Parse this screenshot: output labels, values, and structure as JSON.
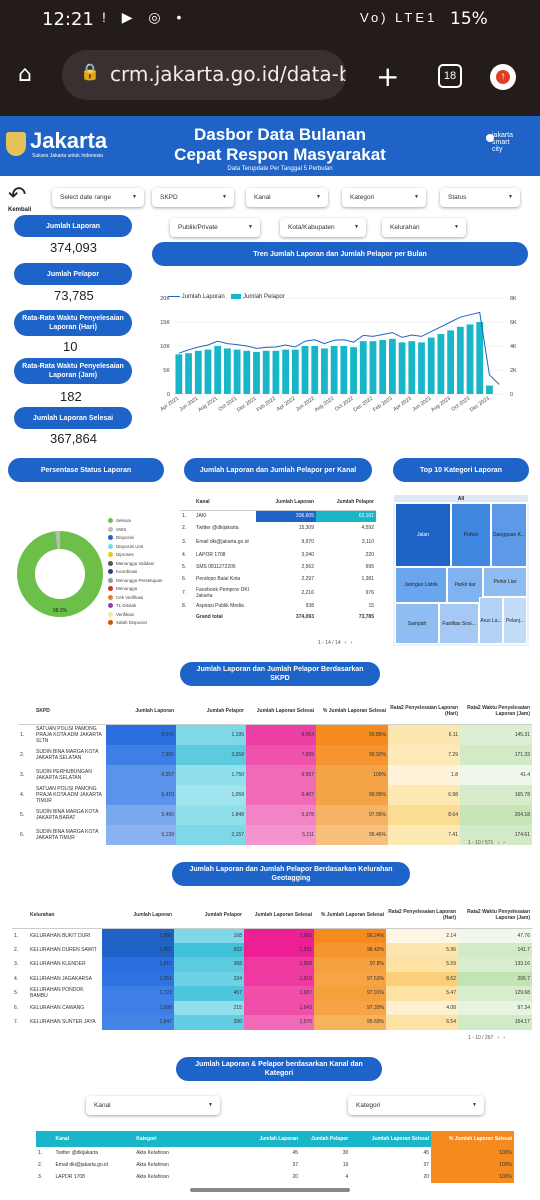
{
  "status_bar": {
    "time": "12:21",
    "icons_left": "! ▶ ◎ •",
    "icons_right": "Vo) LTE1",
    "battery": "15%"
  },
  "browser": {
    "url": "crm.jakarta.go.id/data-b",
    "tab_count": "18"
  },
  "header": {
    "logo": "Jakarta",
    "tagline": "Sukses Jakarta untuk Indonesia",
    "title_line1": "Dasbor Data Bulanan",
    "title_line2": "Cepat Respon Masyarakat",
    "subtitle": "Data Terupdate Per Tanggal 5 Perbulan",
    "jsc": [
      "jakarta",
      "smart",
      "city"
    ]
  },
  "back": {
    "label": "Kembali"
  },
  "filters": {
    "date_range": "Select date range",
    "skpd": "SKPD",
    "kanal": "Kanal",
    "kategori": "Kategori",
    "status": "Status",
    "publik": "Publik/Private",
    "kota": "Kota/Kabupaten",
    "kelurahan": "Kelurahan"
  },
  "kpis": [
    {
      "label": "Jumlah Laporan",
      "value": "374,093"
    },
    {
      "label": "Jumlah Pelapor",
      "value": "73,785"
    },
    {
      "label": "Rata-Rata Waktu Penyelesaian Laporan (Hari)",
      "value": "10"
    },
    {
      "label": "Rata-Rata Waktu Penyelesaian Laporan (Jam)",
      "value": "182"
    },
    {
      "label": "Jumlah Laporan Selesai",
      "value": "367,864"
    }
  ],
  "trend": {
    "title": "Tren Jumlah Laporan dan Jumlah Pelapor per Bulan",
    "legend_line": "Jumlah Laporan",
    "legend_bar": "Jumlah Pelapor"
  },
  "chart_data": {
    "type": "bar",
    "x": [
      "Apr 2021",
      "May 2021",
      "Jun 2021",
      "Jul 2021",
      "Aug 2021",
      "Sep 2021",
      "Oct 2021",
      "Nov 2021",
      "Dec 2021",
      "Jan 2022",
      "Feb 2022",
      "Mar 2022",
      "Apr 2022",
      "May 2022",
      "Jun 2022",
      "Jul 2022",
      "Aug 2022",
      "Sep 2022",
      "Oct 2022",
      "Nov 2022",
      "Dec 2022",
      "Jan 2023",
      "Feb 2023",
      "Mar 2023",
      "Apr 2023",
      "May 2023",
      "Jun 2023",
      "Jul 2023",
      "Aug 2023",
      "Sep 2023",
      "Oct 2023",
      "Nov 2023",
      "Dec 2023",
      "Jan 2024"
    ],
    "tick_labels": [
      "Apr 2021",
      "Jun 2021",
      "Aug 2021",
      "Oct 2021",
      "Dec 2021",
      "Feb 2022",
      "Apr 2022",
      "Jun 2022",
      "Aug 2022",
      "Oct 2022",
      "Dec 2022",
      "Feb 2023",
      "Apr 2023",
      "Jun 2023",
      "Aug 2023",
      "Oct 2023",
      "Dec 2023"
    ],
    "series": [
      {
        "name": "Jumlah Laporan",
        "type": "line",
        "axis": "left",
        "values": [
          8500,
          9200,
          9800,
          10200,
          11000,
          10500,
          10300,
          10000,
          9500,
          9700,
          9800,
          10200,
          9800,
          11000,
          11300,
          10500,
          11200,
          11300,
          10800,
          12200,
          12000,
          12400,
          12800,
          11800,
          12300,
          12000,
          13000,
          14000,
          15000,
          16000,
          16500,
          17000,
          4000,
          2000
        ]
      },
      {
        "name": "Jumlah Pelapor",
        "type": "bar",
        "axis": "right",
        "values": [
          3300,
          3400,
          3600,
          3700,
          4000,
          3800,
          3700,
          3600,
          3500,
          3600,
          3600,
          3700,
          3700,
          4000,
          4000,
          3800,
          4000,
          4000,
          3900,
          4400,
          4400,
          4500,
          4600,
          4300,
          4400,
          4300,
          4700,
          5000,
          5300,
          5600,
          5800,
          6000,
          700,
          0
        ]
      }
    ],
    "ylim_left": [
      0,
      20000
    ],
    "yticks_left": [
      "0",
      "5K",
      "10K",
      "15K",
      "20K"
    ],
    "ylim_right": [
      0,
      8000
    ],
    "yticks_right": [
      "0",
      "2K",
      "4K",
      "6K",
      "8K"
    ],
    "line_color": "#1f63c6",
    "bar_color": "#19b6c9"
  },
  "status_section": {
    "title": "Persentase Status Laporan",
    "legend": [
      {
        "label": "Selesai",
        "color": "#6cc04a"
      },
      {
        "label": "SWS",
        "color": "#bbbbbb"
      },
      {
        "label": "Disposisi",
        "color": "#1f63c6"
      },
      {
        "label": "Disposisi Unit",
        "color": "#7cd3f7"
      },
      {
        "label": "Diproses",
        "color": "#f0c419"
      },
      {
        "label": "Menunggu Validasi",
        "color": "#555555"
      },
      {
        "label": "Koordinasi",
        "color": "#2a3a8f"
      },
      {
        "label": "Menunggu Persetujuan",
        "color": "#9a9a9a"
      },
      {
        "label": "Menunggu",
        "color": "#c0392b"
      },
      {
        "label": "Cek Verifikasi",
        "color": "#e67e22"
      },
      {
        "label": "TL Ditolak",
        "color": "#8e44ad"
      },
      {
        "label": "Verifikasi",
        "color": "#f9e79f"
      },
      {
        "label": "Salah Disposisi",
        "color": "#d35400"
      }
    ],
    "pie_label": "98.3%",
    "selesai_pct": 98.3
  },
  "kanal_section": {
    "title": "Jumlah Laporan dan Jumlah Pelapor per Kanal",
    "headers": [
      "",
      "Kanal",
      "Jumlah Laporan",
      "Jumlah Pelapor"
    ],
    "rows": [
      [
        "1.",
        "JAKI",
        "336,605",
        "62,161"
      ],
      [
        "2.",
        "Twitter @dkijakarta",
        "15,309",
        "4,592"
      ],
      [
        "3.",
        "Email dki@jakarta.go.id",
        "9,970",
        "3,110"
      ],
      [
        "4.",
        "LAPOR 1708",
        "3,040",
        "220"
      ],
      [
        "5.",
        "SMS 0811272206",
        "2,562",
        "695"
      ],
      [
        "6.",
        "Pendopo Balai Kota",
        "2,297",
        "1,381"
      ],
      [
        "7.",
        "Facebook Pemprov DKI Jakarta",
        "2,216",
        "976"
      ],
      [
        "8.",
        "Aspirasi Publik Media",
        "938",
        "15"
      ]
    ],
    "total": [
      "Grand total",
      "374,093",
      "73,785"
    ],
    "pager": "1 - 14 / 14"
  },
  "top10": {
    "title": "Top 10 Kategori Laporan",
    "header": "All",
    "cells": [
      "Jalan",
      "Pohon",
      "Gangguan K...",
      "Jaringan Listrik",
      "Parkir liar",
      "Perkir Liar",
      "Sampah",
      "Fasilitas Sosi...",
      "Arus La...",
      "Pelanj..."
    ]
  },
  "skpd_section": {
    "title": "Jumlah Laporan dan Jumlah Pelapor Berdasarkan SKPD",
    "headers": [
      "",
      "SKPD",
      "Jumlah Laporan",
      "Jumlah Pelapor",
      "Jumlah Laporan Selesai",
      "% Jumlah Laporan Selesai",
      "Rata2 Penyelesaian Laporan (Hari)",
      "Rata2 Waktu Penyelesaian Laporan (Jam)"
    ],
    "rows": [
      [
        "1.",
        "SATUAN POLISI PAMONG PRAJA KOTA ADM JAKARTA SLTN",
        "8,076",
        "1,195",
        "8,064",
        "99.85%",
        "6.11",
        "145.31"
      ],
      [
        "2.",
        "SUDIN BINA MARGA KOTA JAKARTA SELATAN",
        "7,905",
        "3,658",
        "7,899",
        "99.92%",
        "7.29",
        "171.33"
      ],
      [
        "3.",
        "SUDIN PERHUBUNGAN JAKARTA SELATAN",
        "6,557",
        "1,750",
        "6,557",
        "100%",
        "1.8",
        "41.4"
      ],
      [
        "4.",
        "SATUAN POLISI PAMONG PRAJA KOTA ADM JAKARTA TIMUR",
        "6,410",
        "1,059",
        "6,407",
        "99.95%",
        "6.98",
        "165.78"
      ],
      [
        "5.",
        "SUDIN BINA MARGA KOTA JAKARTA BARAT",
        "5,490",
        "1,848",
        "5,378",
        "97.96%",
        "8.64",
        "204.18"
      ],
      [
        "6.",
        "SUDIN BINA MARGA KOTA JAKARTA TIMUR",
        "5,139",
        "2,157",
        "5,111",
        "99.46%",
        "7.41",
        "174.61"
      ]
    ],
    "pager": "1 - 10 / 571"
  },
  "kelurahan_section": {
    "title": "Jumlah Laporan dan Jumlah Pelapor Berdasarkan Kelurahan Geotagging",
    "headers": [
      "",
      "Kelurahan",
      "Jumlah Laporan",
      "Jumlah Pelapor",
      "Jumlah Laporan Selesai",
      "% Jumlah Laporan Selesai",
      "Rata2 Penyelesaian Laporan (Hari)",
      "Rata2 Waktu Penyelesaian Laporan (Jam)"
    ],
    "rows": [
      [
        "1.",
        "KELURAHAN BUKIT DURI",
        "1,980",
        "168",
        "1,965",
        "99.24%",
        "2.14",
        "47.76"
      ],
      [
        "2.",
        "KELURAHAN DUREN SAWIT",
        "1,962",
        "502",
        "1,931",
        "98.42%",
        "5.96",
        "141.7"
      ],
      [
        "3.",
        "KELURAHAN KLENDER",
        "1,910",
        "368",
        "1,868",
        "97.8%",
        "5.59",
        "133.16"
      ],
      [
        "4.",
        "KELURAHAN JAGAKARSA",
        "1,861",
        "334",
        "1,815",
        "97.53%",
        "8.62",
        "206.7"
      ],
      [
        "5.",
        "KELURAHAN PONDOK BAMBU",
        "1,723",
        "457",
        "1,687",
        "97.91%",
        "5.47",
        "129.68"
      ],
      [
        "6.",
        "KELURAHAN CAWANG",
        "1,688",
        "215",
        "1,643",
        "97.33%",
        "4.08",
        "97.34"
      ],
      [
        "7.",
        "KELURAHAN SUNTER JAYA",
        "1,647",
        "390",
        "1,576",
        "95.69%",
        "6.54",
        "154.17"
      ]
    ],
    "pager": "1 - 10 / 267"
  },
  "bottom_section": {
    "title": "Jumlah Laporan & Pelapor berdasarkan Kanal dan Kategori",
    "filter_kanal": "Kanal",
    "filter_kategori": "Kategori",
    "headers": [
      "",
      "Kanal",
      "Kategori",
      "Jumlah Laporan",
      "Jumlah Pelapor",
      "Jumlah Laporan Selesai",
      "% Jumlah Laporan Selesai"
    ],
    "rows": [
      [
        "1.",
        "Twitter @dkijakarta",
        "Akta Kelahiran",
        "45",
        "30",
        "45",
        "100%"
      ],
      [
        "2.",
        "Email dki@jakarta.go.id",
        "Akta Kelahiran",
        "37",
        "19",
        "37",
        "100%"
      ],
      [
        "3.",
        "LAPOR 1708",
        "Akta Kelahiran",
        "20",
        "4",
        "20",
        "100%"
      ]
    ]
  }
}
